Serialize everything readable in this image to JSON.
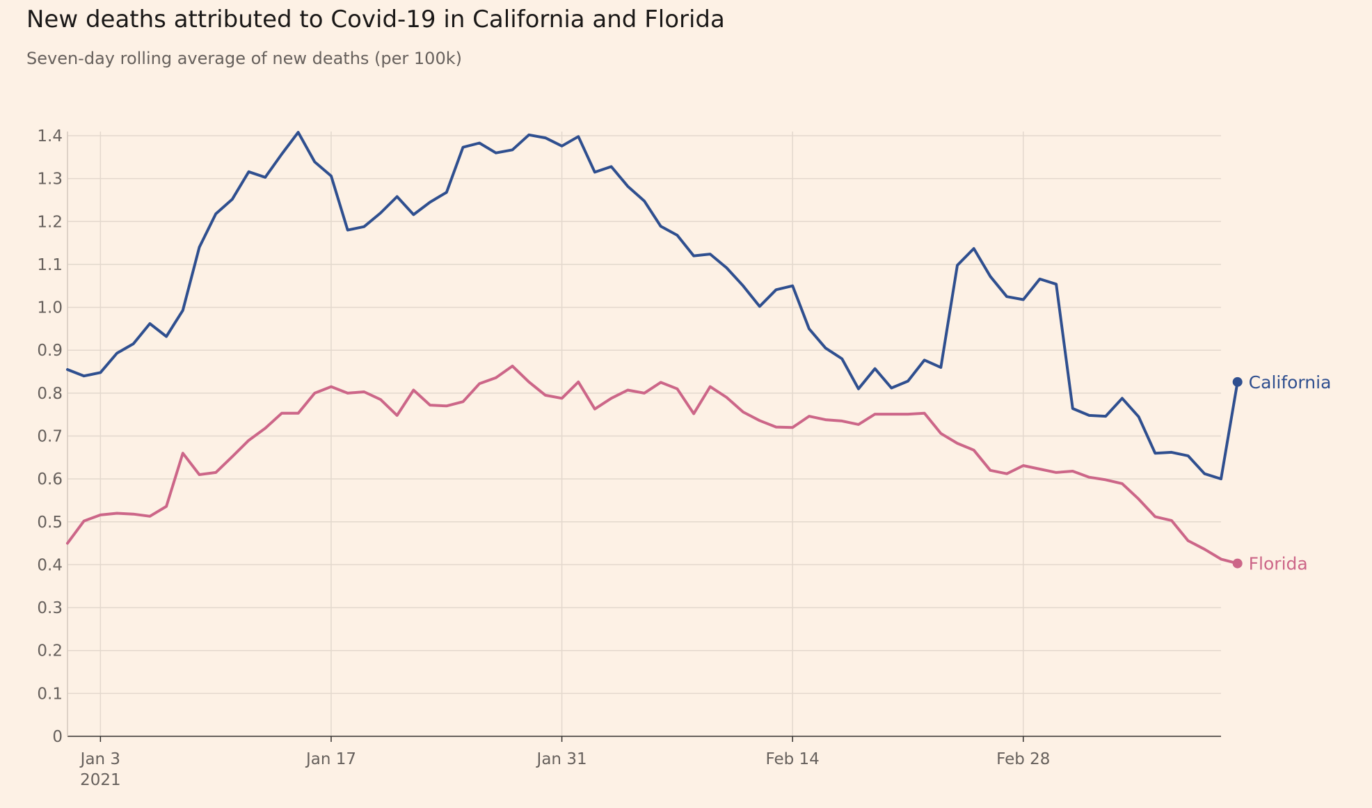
{
  "title": "New deaths attributed to Covid-19 in California and Florida",
  "subtitle": "Seven-day rolling average of new deaths (per 100k)",
  "chart_data": {
    "type": "line",
    "title": "New deaths attributed to Covid-19 in California and Florida",
    "subtitle": "Seven-day rolling average of new deaths (per 100k)",
    "xlabel": "",
    "ylabel": "",
    "x_start_day": 1,
    "x_end_day": 71,
    "x_ticks": [
      {
        "day": 3,
        "label": "Jan 3",
        "sublabel": "2021"
      },
      {
        "day": 17,
        "label": "Jan 17",
        "sublabel": ""
      },
      {
        "day": 31,
        "label": "Jan 31",
        "sublabel": ""
      },
      {
        "day": 45,
        "label": "Feb 14",
        "sublabel": ""
      },
      {
        "day": 59,
        "label": "Feb 28",
        "sublabel": ""
      }
    ],
    "ylim": [
      0,
      1.4
    ],
    "y_ticks": [
      {
        "value": 0,
        "label": "0"
      },
      {
        "value": 0.1,
        "label": "0.1"
      },
      {
        "value": 0.2,
        "label": "0.2"
      },
      {
        "value": 0.3,
        "label": "0.3"
      },
      {
        "value": 0.4,
        "label": "0.4"
      },
      {
        "value": 0.5,
        "label": "0.5"
      },
      {
        "value": 0.6,
        "label": "0.6"
      },
      {
        "value": 0.7,
        "label": "0.7"
      },
      {
        "value": 0.8,
        "label": "0.8"
      },
      {
        "value": 0.9,
        "label": "0.9"
      },
      {
        "value": 1.0,
        "label": "1.0"
      },
      {
        "value": 1.1,
        "label": "1.1"
      },
      {
        "value": 1.2,
        "label": "1.2"
      },
      {
        "value": 1.3,
        "label": "1.3"
      },
      {
        "value": 1.4,
        "label": "1.4"
      }
    ],
    "grid": true,
    "series": [
      {
        "name": "California",
        "color": "#2f4f8f",
        "values": [
          0.855,
          0.84,
          0.848,
          0.893,
          0.915,
          0.962,
          0.932,
          0.993,
          1.14,
          1.218,
          1.252,
          1.316,
          1.303,
          1.357,
          1.408,
          1.339,
          1.306,
          1.18,
          1.188,
          1.22,
          1.258,
          1.216,
          1.245,
          1.268,
          1.373,
          1.383,
          1.36,
          1.367,
          1.402,
          1.395,
          1.376,
          1.398,
          1.315,
          1.328,
          1.282,
          1.248,
          1.189,
          1.168,
          1.12,
          1.124,
          1.092,
          1.05,
          1.002,
          1.041,
          1.05,
          0.95,
          0.905,
          0.88,
          0.81,
          0.857,
          0.812,
          0.828,
          0.877,
          0.86,
          1.098,
          1.137,
          1.072,
          1.025,
          1.018,
          1.066,
          1.054,
          0.764,
          0.748,
          0.746,
          0.788,
          0.745,
          0.66,
          0.662,
          0.654,
          0.612,
          0.6,
          0.826
        ]
      },
      {
        "name": "Florida",
        "color": "#cc6688",
        "values": [
          0.45,
          0.502,
          0.516,
          0.52,
          0.518,
          0.513,
          0.536,
          0.66,
          0.61,
          0.615,
          0.652,
          0.69,
          0.718,
          0.753,
          0.753,
          0.8,
          0.815,
          0.8,
          0.803,
          0.785,
          0.748,
          0.807,
          0.772,
          0.77,
          0.78,
          0.822,
          0.836,
          0.863,
          0.826,
          0.795,
          0.788,
          0.826,
          0.763,
          0.788,
          0.807,
          0.8,
          0.825,
          0.81,
          0.752,
          0.815,
          0.79,
          0.756,
          0.736,
          0.721,
          0.72,
          0.746,
          0.738,
          0.735,
          0.727,
          0.751,
          0.751,
          0.751,
          0.753,
          0.706,
          0.683,
          0.667,
          0.62,
          0.612,
          0.631,
          0.623,
          0.615,
          0.618,
          0.604,
          0.598,
          0.589,
          0.553,
          0.512,
          0.503,
          0.456,
          0.436,
          0.413,
          0.403
        ]
      }
    ]
  }
}
